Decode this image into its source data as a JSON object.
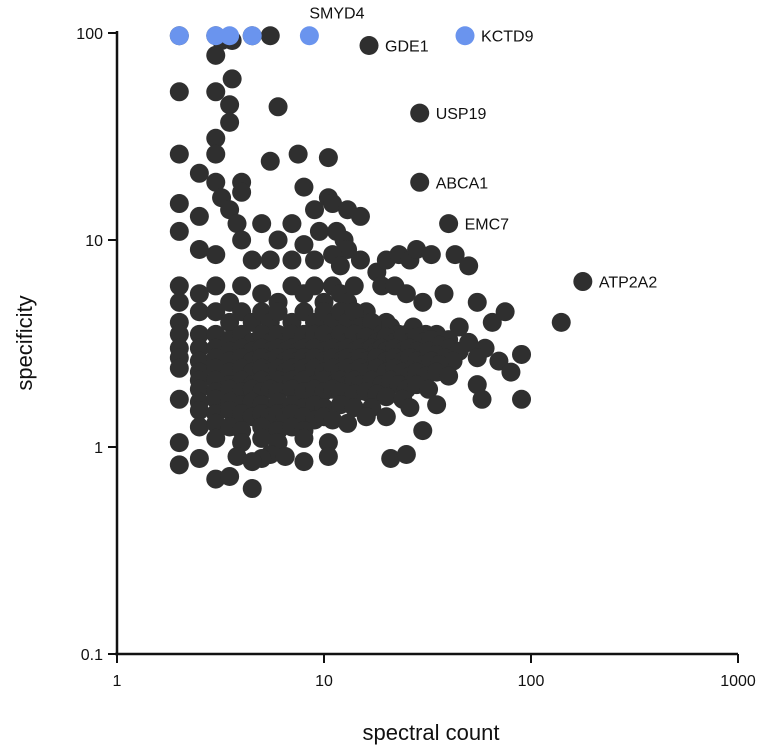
{
  "chart_data": {
    "type": "scatter",
    "title": "",
    "xlabel": "spectral count",
    "ylabel": "specificity",
    "x_scale": "log",
    "y_scale": "log",
    "xlim": [
      1,
      1000
    ],
    "ylim": [
      0.1,
      100
    ],
    "x_ticks": [
      "1",
      "10",
      "100",
      "1000"
    ],
    "y_ticks": [
      "0.1",
      "1",
      "10",
      "100"
    ],
    "grid": false,
    "colors": {
      "default": "#2f2f2f",
      "highlight": "#6a94ee"
    },
    "labeled_points": [
      {
        "label": "SMYD4",
        "x": 8.5,
        "y": 97
      },
      {
        "label": "KCTD9",
        "x": 48,
        "y": 97
      },
      {
        "label": "GDE1",
        "x": 16.5,
        "y": 87
      },
      {
        "label": "USP19",
        "x": 29,
        "y": 41
      },
      {
        "label": "ABCA1",
        "x": 29,
        "y": 19
      },
      {
        "label": "EMC7",
        "x": 40,
        "y": 12
      },
      {
        "label": "ATP2A2",
        "x": 178,
        "y": 6.3
      }
    ],
    "highlighted_points": [
      {
        "x": 2,
        "y": 97
      },
      {
        "x": 3,
        "y": 97
      },
      {
        "x": 3.5,
        "y": 97
      },
      {
        "x": 4.5,
        "y": 97
      },
      {
        "x": 8.5,
        "y": 97
      },
      {
        "x": 48,
        "y": 97
      }
    ],
    "points": [
      [
        2,
        97
      ],
      [
        3,
        97
      ],
      [
        4.5,
        97
      ],
      [
        5.5,
        97
      ],
      [
        16.5,
        87
      ],
      [
        29,
        41
      ],
      [
        29,
        19
      ],
      [
        40,
        12
      ],
      [
        178,
        6.3
      ],
      [
        140,
        4
      ],
      [
        3.2,
        92
      ],
      [
        3.6,
        92
      ],
      [
        3,
        78
      ],
      [
        3.6,
        60
      ],
      [
        2,
        52
      ],
      [
        3,
        52
      ],
      [
        3.5,
        45
      ],
      [
        6,
        44
      ],
      [
        3.5,
        37
      ],
      [
        3,
        31
      ],
      [
        3,
        26
      ],
      [
        2,
        26
      ],
      [
        7.5,
        26
      ],
      [
        10.5,
        25
      ],
      [
        5.5,
        24
      ],
      [
        2.5,
        21
      ],
      [
        3,
        19
      ],
      [
        4,
        19
      ],
      [
        4,
        17
      ],
      [
        8,
        18
      ],
      [
        3.2,
        16
      ],
      [
        10.5,
        16
      ],
      [
        2,
        15
      ],
      [
        3.5,
        14
      ],
      [
        5,
        12
      ],
      [
        9,
        14
      ],
      [
        11,
        15
      ],
      [
        13,
        14
      ],
      [
        15,
        13
      ],
      [
        2.5,
        13
      ],
      [
        3.8,
        12
      ],
      [
        7,
        12
      ],
      [
        9.5,
        11
      ],
      [
        11.5,
        11
      ],
      [
        12.5,
        10
      ],
      [
        2,
        11
      ],
      [
        4,
        10
      ],
      [
        6,
        10
      ],
      [
        8,
        9.5
      ],
      [
        13,
        9
      ],
      [
        2.5,
        9
      ],
      [
        3,
        8.5
      ],
      [
        4.5,
        8
      ],
      [
        5.5,
        8
      ],
      [
        7,
        8
      ],
      [
        9,
        8
      ],
      [
        11,
        8.5
      ],
      [
        12,
        7.5
      ],
      [
        15,
        8
      ],
      [
        18,
        7
      ],
      [
        20,
        8
      ],
      [
        23,
        8.5
      ],
      [
        26,
        8
      ],
      [
        28,
        9
      ],
      [
        33,
        8.5
      ],
      [
        43,
        8.5
      ],
      [
        50,
        7.5
      ],
      [
        19,
        6
      ],
      [
        22,
        6
      ],
      [
        25,
        5.5
      ],
      [
        30,
        5
      ],
      [
        38,
        5.5
      ],
      [
        55,
        5
      ],
      [
        75,
        4.5
      ],
      [
        65,
        4
      ],
      [
        45,
        3.8
      ],
      [
        35,
        3.5
      ],
      [
        25,
        3.5
      ],
      [
        20,
        4
      ],
      [
        16,
        4.5
      ],
      [
        2,
        6
      ],
      [
        2.5,
        5.5
      ],
      [
        3,
        6
      ],
      [
        3.5,
        5
      ],
      [
        4,
        6
      ],
      [
        5,
        5.5
      ],
      [
        6,
        5
      ],
      [
        7,
        6
      ],
      [
        8,
        5.5
      ],
      [
        9,
        6
      ],
      [
        10,
        5
      ],
      [
        11,
        6
      ],
      [
        12,
        5.5
      ],
      [
        13,
        5
      ],
      [
        14,
        6
      ],
      [
        2,
        5
      ],
      [
        2.5,
        4.5
      ],
      [
        3,
        4.5
      ],
      [
        3.5,
        4
      ],
      [
        4,
        4.5
      ],
      [
        4.5,
        4
      ],
      [
        5,
        4.5
      ],
      [
        5.5,
        4
      ],
      [
        6,
        4.5
      ],
      [
        7,
        4
      ],
      [
        8,
        4.5
      ],
      [
        9,
        4
      ],
      [
        10,
        4.5
      ],
      [
        11,
        4
      ],
      [
        12,
        4.5
      ],
      [
        13,
        4
      ],
      [
        14,
        4.5
      ],
      [
        15,
        3.8
      ],
      [
        17,
        4
      ],
      [
        19,
        3.5
      ],
      [
        21,
        3.8
      ],
      [
        23,
        3.5
      ],
      [
        27,
        3.8
      ],
      [
        31,
        3.5
      ],
      [
        40,
        3.3
      ],
      [
        2,
        4
      ],
      [
        2,
        3.5
      ],
      [
        2.5,
        3.5
      ],
      [
        3,
        3.5
      ],
      [
        3.5,
        3.3
      ],
      [
        4,
        3.5
      ],
      [
        4.5,
        3.2
      ],
      [
        5,
        3.5
      ],
      [
        5.5,
        3.2
      ],
      [
        6,
        3.5
      ],
      [
        6.5,
        3.2
      ],
      [
        7,
        3.5
      ],
      [
        7.5,
        3.2
      ],
      [
        8,
        3.5
      ],
      [
        8.5,
        3.2
      ],
      [
        9,
        3.5
      ],
      [
        9.5,
        3.2
      ],
      [
        10,
        3.5
      ],
      [
        11,
        3.2
      ],
      [
        12,
        3.5
      ],
      [
        13,
        3.2
      ],
      [
        14,
        3.5
      ],
      [
        15,
        3.2
      ],
      [
        16,
        3.4
      ],
      [
        18,
        3.2
      ],
      [
        20,
        3.4
      ],
      [
        22,
        3.2
      ],
      [
        24,
        3.4
      ],
      [
        26,
        3.2
      ],
      [
        28,
        3.4
      ],
      [
        30,
        3.2
      ],
      [
        33,
        3.3
      ],
      [
        36,
        3.1
      ],
      [
        40,
        3
      ],
      [
        45,
        2.9
      ],
      [
        50,
        3.2
      ],
      [
        60,
        3
      ],
      [
        70,
        2.6
      ],
      [
        90,
        2.8
      ],
      [
        55,
        2.7
      ],
      [
        2,
        3
      ],
      [
        2.5,
        3
      ],
      [
        3,
        3
      ],
      [
        3.5,
        2.9
      ],
      [
        4,
        3
      ],
      [
        4.5,
        2.9
      ],
      [
        5,
        3
      ],
      [
        5.5,
        2.9
      ],
      [
        6,
        3
      ],
      [
        6.5,
        2.9
      ],
      [
        7,
        3
      ],
      [
        7.5,
        2.9
      ],
      [
        8,
        3
      ],
      [
        8.5,
        2.9
      ],
      [
        9,
        3
      ],
      [
        10,
        2.9
      ],
      [
        11,
        3
      ],
      [
        12,
        2.9
      ],
      [
        13,
        3
      ],
      [
        14,
        2.9
      ],
      [
        15,
        3
      ],
      [
        16,
        2.9
      ],
      [
        17,
        3
      ],
      [
        18,
        2.9
      ],
      [
        19,
        3
      ],
      [
        20,
        2.9
      ],
      [
        22,
        3
      ],
      [
        24,
        2.9
      ],
      [
        26,
        3
      ],
      [
        28,
        2.9
      ],
      [
        30,
        2.8
      ],
      [
        32,
        2.9
      ],
      [
        35,
        2.8
      ],
      [
        38,
        2.7
      ],
      [
        42,
        2.6
      ],
      [
        2,
        2.7
      ],
      [
        2.5,
        2.6
      ],
      [
        3,
        2.7
      ],
      [
        3.5,
        2.6
      ],
      [
        4,
        2.7
      ],
      [
        4.5,
        2.6
      ],
      [
        5,
        2.7
      ],
      [
        5.5,
        2.6
      ],
      [
        6,
        2.7
      ],
      [
        6.5,
        2.6
      ],
      [
        7,
        2.7
      ],
      [
        7.5,
        2.6
      ],
      [
        8,
        2.7
      ],
      [
        8.5,
        2.6
      ],
      [
        9,
        2.7
      ],
      [
        10,
        2.6
      ],
      [
        11,
        2.7
      ],
      [
        12,
        2.6
      ],
      [
        13,
        2.7
      ],
      [
        14,
        2.6
      ],
      [
        15,
        2.7
      ],
      [
        16,
        2.6
      ],
      [
        18,
        2.7
      ],
      [
        20,
        2.6
      ],
      [
        22,
        2.7
      ],
      [
        24,
        2.6
      ],
      [
        26,
        2.7
      ],
      [
        28,
        2.6
      ],
      [
        30,
        2.5
      ],
      [
        33,
        2.6
      ],
      [
        36,
        2.5
      ],
      [
        2,
        2.4
      ],
      [
        2.5,
        2.3
      ],
      [
        3,
        2.4
      ],
      [
        3.5,
        2.3
      ],
      [
        4,
        2.4
      ],
      [
        4.5,
        2.3
      ],
      [
        5,
        2.4
      ],
      [
        5.5,
        2.3
      ],
      [
        6,
        2.4
      ],
      [
        6.5,
        2.3
      ],
      [
        7,
        2.4
      ],
      [
        7.5,
        2.3
      ],
      [
        8,
        2.4
      ],
      [
        8.5,
        2.3
      ],
      [
        9,
        2.4
      ],
      [
        10,
        2.3
      ],
      [
        11,
        2.4
      ],
      [
        12,
        2.3
      ],
      [
        13,
        2.4
      ],
      [
        14,
        2.3
      ],
      [
        15,
        2.4
      ],
      [
        16,
        2.3
      ],
      [
        18,
        2.4
      ],
      [
        20,
        2.3
      ],
      [
        22,
        2.4
      ],
      [
        24,
        2.3
      ],
      [
        26,
        2.2
      ],
      [
        28,
        2.3
      ],
      [
        31,
        2.2
      ],
      [
        35,
        2.3
      ],
      [
        40,
        2.2
      ],
      [
        80,
        2.3
      ],
      [
        55,
        2
      ],
      [
        2.5,
        2.1
      ],
      [
        3,
        2.1
      ],
      [
        3.5,
        2
      ],
      [
        4,
        2.1
      ],
      [
        4.5,
        2
      ],
      [
        5,
        2.1
      ],
      [
        5.5,
        2
      ],
      [
        6,
        2.1
      ],
      [
        6.5,
        2
      ],
      [
        7,
        2.1
      ],
      [
        7.5,
        2
      ],
      [
        8,
        2.1
      ],
      [
        9,
        2
      ],
      [
        10,
        2.1
      ],
      [
        11,
        2
      ],
      [
        12,
        2.1
      ],
      [
        13,
        2
      ],
      [
        14,
        2.1
      ],
      [
        15,
        2
      ],
      [
        17,
        2.1
      ],
      [
        19,
        2
      ],
      [
        21,
        2.1
      ],
      [
        23,
        2
      ],
      [
        25,
        1.9
      ],
      [
        28,
        2
      ],
      [
        32,
        1.9
      ],
      [
        2.5,
        1.9
      ],
      [
        3,
        1.85
      ],
      [
        3.5,
        1.9
      ],
      [
        4,
        1.85
      ],
      [
        4.5,
        1.9
      ],
      [
        5,
        1.85
      ],
      [
        5.5,
        1.9
      ],
      [
        6,
        1.85
      ],
      [
        7,
        1.9
      ],
      [
        8,
        1.85
      ],
      [
        9,
        1.9
      ],
      [
        10,
        1.85
      ],
      [
        11,
        1.9
      ],
      [
        12,
        1.85
      ],
      [
        14,
        1.8
      ],
      [
        16,
        1.85
      ],
      [
        18,
        1.8
      ],
      [
        20,
        1.75
      ],
      [
        24,
        1.7
      ],
      [
        2,
        1.7
      ],
      [
        2.5,
        1.65
      ],
      [
        3,
        1.7
      ],
      [
        3.5,
        1.65
      ],
      [
        4,
        1.6
      ],
      [
        4.5,
        1.65
      ],
      [
        5,
        1.6
      ],
      [
        6,
        1.65
      ],
      [
        7,
        1.6
      ],
      [
        8,
        1.55
      ],
      [
        9,
        1.6
      ],
      [
        10,
        1.55
      ],
      [
        12,
        1.6
      ],
      [
        14,
        1.55
      ],
      [
        17,
        1.55
      ],
      [
        26,
        1.55
      ],
      [
        35,
        1.6
      ],
      [
        58,
        1.7
      ],
      [
        90,
        1.7
      ],
      [
        2.5,
        1.5
      ],
      [
        3,
        1.45
      ],
      [
        3.5,
        1.5
      ],
      [
        4,
        1.45
      ],
      [
        4.5,
        1.4
      ],
      [
        5,
        1.45
      ],
      [
        5.5,
        1.4
      ],
      [
        6,
        1.45
      ],
      [
        6.5,
        1.4
      ],
      [
        7,
        1.45
      ],
      [
        8,
        1.4
      ],
      [
        9,
        1.35
      ],
      [
        10,
        1.4
      ],
      [
        11,
        1.35
      ],
      [
        13,
        1.3
      ],
      [
        16,
        1.4
      ],
      [
        20,
        1.4
      ],
      [
        2.5,
        1.25
      ],
      [
        3,
        1.3
      ],
      [
        3.5,
        1.25
      ],
      [
        4,
        1.2
      ],
      [
        5,
        1.25
      ],
      [
        6,
        1.2
      ],
      [
        7,
        1.25
      ],
      [
        8,
        1.2
      ],
      [
        30,
        1.2
      ],
      [
        2,
        1.05
      ],
      [
        3,
        1.1
      ],
      [
        4,
        1.05
      ],
      [
        5,
        1.1
      ],
      [
        6,
        1.05
      ],
      [
        8,
        1.1
      ],
      [
        10.5,
        1.05
      ],
      [
        3.8,
        0.9
      ],
      [
        5.5,
        0.92
      ],
      [
        5,
        0.88
      ],
      [
        4.5,
        0.85
      ],
      [
        6.5,
        0.9
      ],
      [
        8,
        0.85
      ],
      [
        10.5,
        0.9
      ],
      [
        21,
        0.88
      ],
      [
        25,
        0.92
      ],
      [
        2,
        0.82
      ],
      [
        2.5,
        0.88
      ],
      [
        3,
        0.7
      ],
      [
        3.5,
        0.72
      ],
      [
        4.5,
        0.63
      ]
    ]
  }
}
